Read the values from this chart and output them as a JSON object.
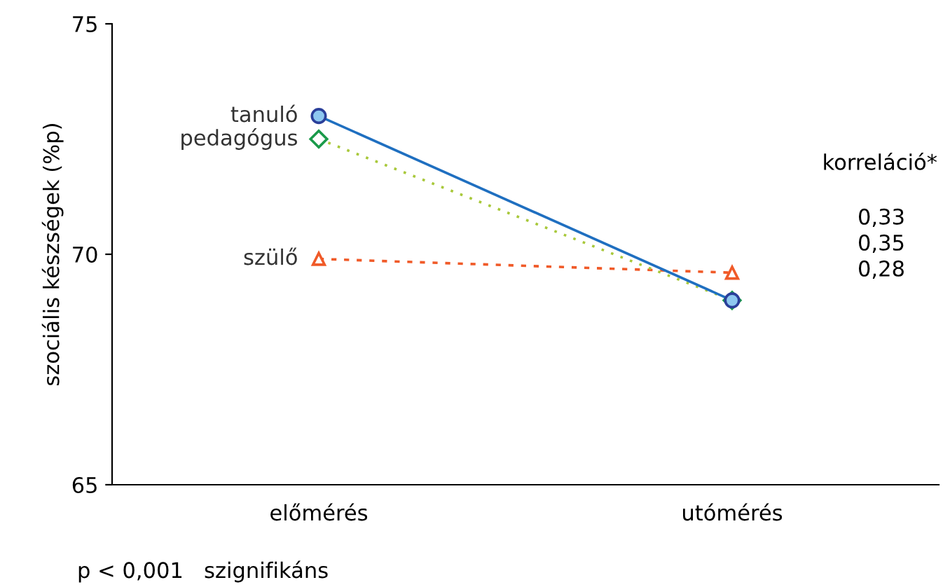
{
  "chart_data": {
    "type": "line",
    "ylabel": "szociális készségek (%p)",
    "categories": [
      "előmérés",
      "utómérés"
    ],
    "series": [
      {
        "name": "tanuló",
        "color": "#1f6fc0",
        "values": [
          73.0,
          69.0
        ],
        "marker": "circle",
        "line_style": "solid"
      },
      {
        "name": "pedagógus",
        "color": "#a8c83a",
        "values": [
          72.5,
          69.0
        ],
        "marker": "diamond",
        "line_style": "dotted"
      },
      {
        "name": "szülő",
        "color": "#f05a28",
        "values": [
          69.9,
          69.6
        ],
        "marker": "triangle",
        "line_style": "dashed"
      }
    ],
    "ylim": [
      65,
      75
    ],
    "yticks": [
      65,
      70,
      75
    ],
    "grid": false,
    "legend": false,
    "annotations": [
      "korreláció*",
      "0,33",
      "0,35",
      "0,28",
      "p < 0,001   szignifikáns"
    ]
  }
}
